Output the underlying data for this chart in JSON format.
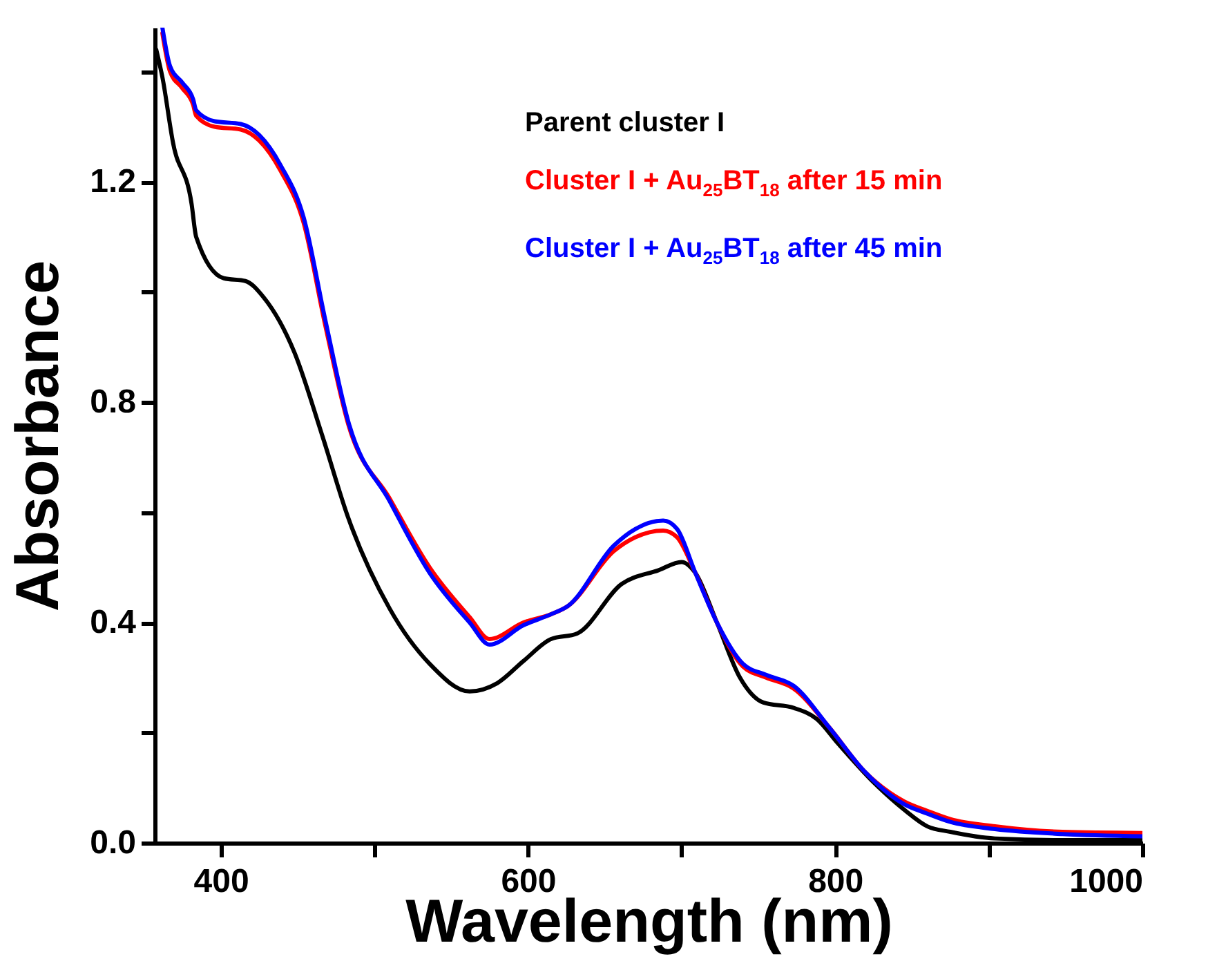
{
  "chart_data": {
    "type": "line",
    "xlabel": "Wavelength (nm)",
    "ylabel": "Absorbance",
    "xlim": [
      357,
      1000
    ],
    "ylim": [
      0,
      1.48
    ],
    "xticks": [
      400,
      {
        "value": 500,
        "label": null
      },
      600,
      {
        "value": 700,
        "label": null
      },
      800,
      {
        "value": 900,
        "label": null
      },
      1000
    ],
    "yticks": [
      {
        "value": 0,
        "label": "0.0"
      },
      {
        "value": 0.2,
        "label": null
      },
      0.4,
      {
        "value": 0.6,
        "label": null
      },
      0.8,
      {
        "value": 1.0,
        "label": null
      },
      1.2,
      {
        "value": 1.4,
        "label": null
      }
    ],
    "grid": false,
    "legend": "top right",
    "line_style": "solid",
    "marker": "none",
    "series": [
      {
        "name": "Parent cluster I",
        "color": "#000000",
        "x": [
          358,
          362,
          369,
          381,
          384,
          402,
          416,
          428,
          448,
          466,
          483,
          510,
          536,
          562,
          580,
          597,
          615,
          632,
          661,
          685,
          700,
          709,
          723,
          738,
          753,
          773,
          788,
          802,
          825,
          845,
          860,
          875,
          904,
          950,
          1000
        ],
        "values": [
          1.44,
          1.39,
          1.27,
          1.16,
          1.1,
          1.025,
          1.02,
          0.99,
          0.89,
          0.74,
          0.59,
          0.425,
          0.325,
          0.275,
          0.29,
          0.33,
          0.37,
          0.38,
          0.47,
          0.495,
          0.51,
          0.49,
          0.4,
          0.3,
          0.255,
          0.245,
          0.225,
          0.18,
          0.11,
          0.06,
          0.03,
          0.02,
          0.008,
          0.005,
          0.005
        ]
      },
      {
        "name": "Cluster I + Au$_{25}$BT$_{18}$ after 15 min",
        "color": "#ff0000",
        "x": [
          362,
          367,
          375,
          382,
          384,
          396,
          413,
          425,
          439,
          454,
          468,
          483,
          510,
          536,
          562,
          575,
          597,
          615,
          626,
          656,
          670,
          688,
          697,
          709,
          723,
          740,
          755,
          773,
          796,
          819,
          845,
          860,
          875,
          904,
          948,
          1000
        ],
        "values": [
          1.47,
          1.4,
          1.37,
          1.34,
          1.32,
          1.3,
          1.295,
          1.275,
          1.22,
          1.125,
          0.94,
          0.76,
          0.625,
          0.5,
          0.41,
          0.37,
          0.4,
          0.415,
          0.43,
          0.53,
          0.555,
          0.567,
          0.555,
          0.49,
          0.4,
          0.32,
          0.3,
          0.28,
          0.21,
          0.13,
          0.075,
          0.058,
          0.043,
          0.03,
          0.02,
          0.018
        ]
      },
      {
        "name": "Cluster I + Au$_{25}$BT$_{18}$ after 45 min",
        "color": "#0000ff",
        "x": [
          362,
          367,
          375,
          382,
          384,
          396,
          413,
          425,
          439,
          454,
          468,
          483,
          510,
          536,
          562,
          575,
          597,
          615,
          626,
          656,
          670,
          688,
          697,
          709,
          723,
          740,
          755,
          773,
          796,
          819,
          845,
          860,
          875,
          904,
          948,
          1000
        ],
        "values": [
          1.48,
          1.41,
          1.38,
          1.35,
          1.33,
          1.31,
          1.305,
          1.285,
          1.23,
          1.135,
          0.95,
          0.765,
          0.62,
          0.49,
          0.4,
          0.36,
          0.395,
          0.415,
          0.43,
          0.54,
          0.57,
          0.585,
          0.57,
          0.49,
          0.4,
          0.325,
          0.305,
          0.285,
          0.21,
          0.13,
          0.07,
          0.053,
          0.038,
          0.025,
          0.016,
          0.012
        ]
      }
    ]
  }
}
